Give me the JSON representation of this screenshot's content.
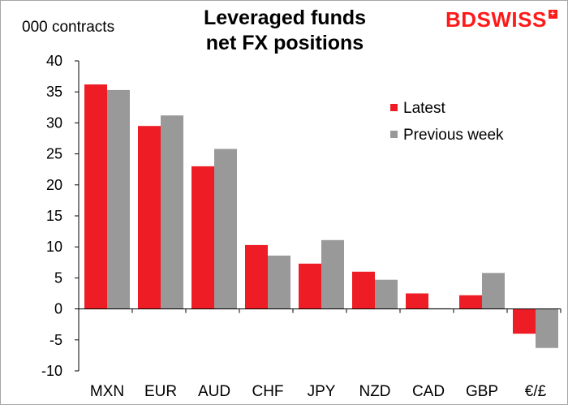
{
  "header": {
    "unit_label": "000 contracts",
    "title_line1": "Leveraged funds",
    "title_line2": "net FX positions",
    "logo_text": "BDSWISS"
  },
  "colors": {
    "latest": "#ee1c24",
    "previous": "#999999",
    "logo": "#ff1a1a"
  },
  "chart_data": {
    "type": "bar",
    "title": "Leveraged funds net FX positions",
    "ylabel": "000 contracts",
    "xlabel": "",
    "ylim": [
      -10,
      40
    ],
    "yticks": [
      40,
      35,
      30,
      25,
      20,
      15,
      10,
      5,
      0,
      -5,
      -10
    ],
    "categories": [
      "MXN",
      "EUR",
      "AUD",
      "CHF",
      "JPY",
      "NZD",
      "CAD",
      "GBP",
      "€/£"
    ],
    "series": [
      {
        "name": "Latest",
        "values": [
          36.2,
          29.5,
          23.0,
          10.3,
          7.3,
          6.0,
          2.5,
          2.2,
          -4.0
        ]
      },
      {
        "name": "Previous week",
        "values": [
          35.3,
          31.2,
          25.8,
          8.6,
          11.1,
          4.7,
          0.1,
          5.8,
          -6.3
        ]
      }
    ],
    "legend_position": "top-right",
    "grid": false
  }
}
